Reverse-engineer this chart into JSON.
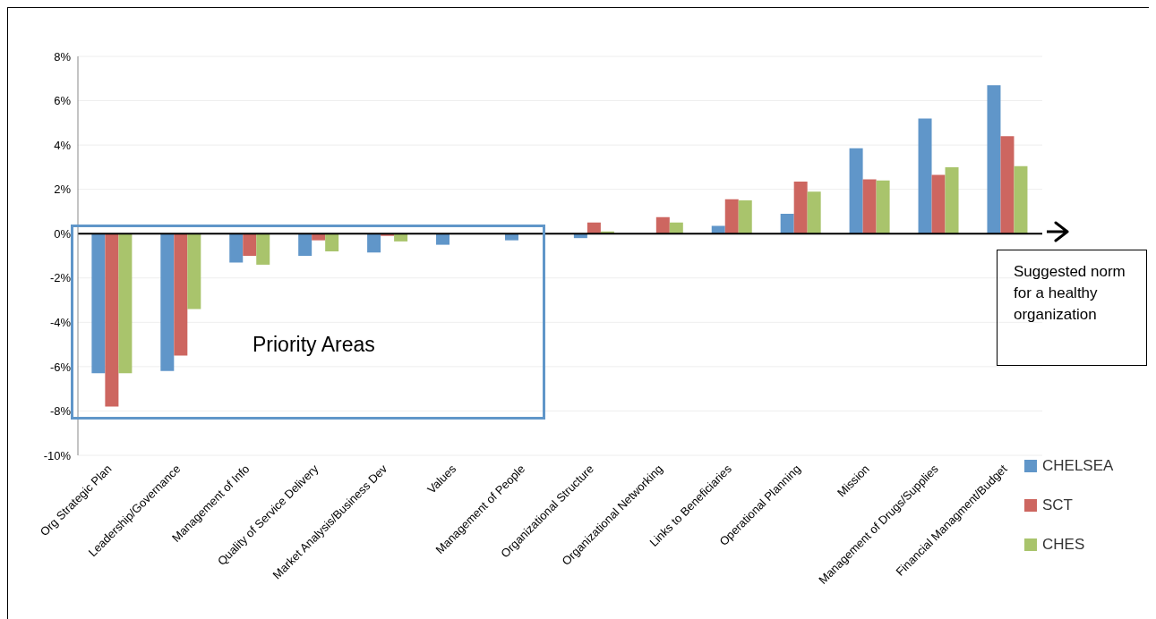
{
  "chart_data": {
    "type": "bar",
    "categories": [
      "Org Strategic Plan",
      "Leadership/Governance",
      "Management of Info",
      "Quality of Service Delivery",
      "Market Analysis/Business Dev",
      "Values",
      "Management of People",
      "Organizational Structure",
      "Organizational Networking",
      "Links to Beneficiaries",
      "Operational Planning",
      "Mission",
      "Management of Drugs/Supplies",
      "Financial Managment/Budget"
    ],
    "series": [
      {
        "name": "CHELSEA",
        "color": "#6096c9",
        "values": [
          -6.3,
          -6.2,
          -1.3,
          -1.0,
          -0.85,
          -0.5,
          -0.3,
          -0.2,
          0,
          0.35,
          0.9,
          3.85,
          5.2,
          6.7
        ]
      },
      {
        "name": "SCT",
        "color": "#cd6660",
        "values": [
          -7.8,
          -5.5,
          -1.0,
          -0.3,
          -0.1,
          0,
          0,
          0.5,
          0.75,
          1.55,
          2.35,
          2.45,
          2.65,
          4.4
        ]
      },
      {
        "name": "CHES",
        "color": "#a9c46c",
        "values": [
          -6.3,
          -3.4,
          -1.4,
          -0.8,
          -0.35,
          0,
          0,
          0.1,
          0.5,
          1.5,
          1.9,
          2.4,
          3.0,
          3.05
        ]
      }
    ],
    "ylim": [
      -10,
      8
    ],
    "yticks": [
      {
        "value": -10,
        "label": "-10%"
      },
      {
        "value": -8,
        "label": "-8%"
      },
      {
        "value": -6,
        "label": "-6%"
      },
      {
        "value": -4,
        "label": "-4%"
      },
      {
        "value": -2,
        "label": "-2%"
      },
      {
        "value": 0,
        "label": "0%"
      },
      {
        "value": 2,
        "label": "2%"
      },
      {
        "value": 4,
        "label": "4%"
      },
      {
        "value": 6,
        "label": "6%"
      },
      {
        "value": 8,
        "label": "8%"
      }
    ],
    "grid": "y",
    "legend": "right",
    "ref_lines": [
      {
        "axis": "y",
        "value": 0,
        "color": "#000000"
      }
    ],
    "annotations": [
      "Priority Areas",
      "Suggested norm for a healthy organization"
    ]
  }
}
